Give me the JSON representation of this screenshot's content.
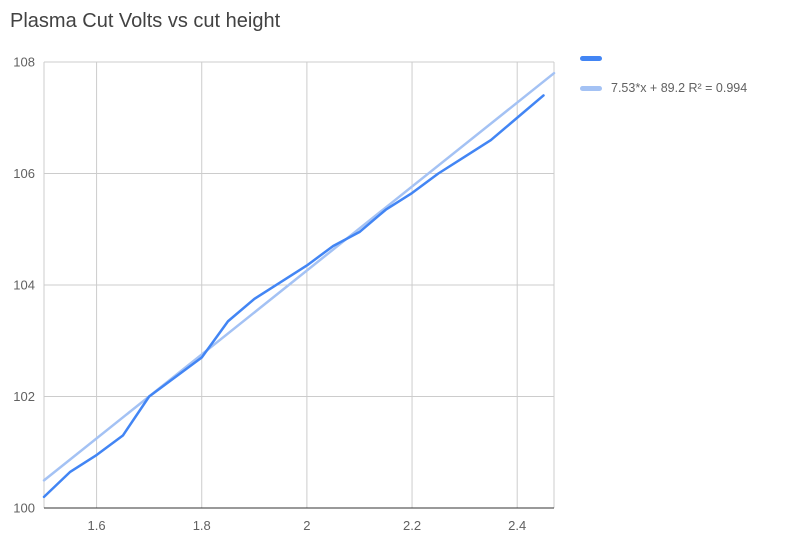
{
  "chart_data": {
    "type": "line",
    "title": "Plasma Cut Volts vs cut height",
    "xlabel": "",
    "ylabel": "",
    "x": [
      1.5,
      1.55,
      1.6,
      1.65,
      1.7,
      1.75,
      1.8,
      1.85,
      1.9,
      1.95,
      2,
      2.05,
      2.1,
      2.15,
      2.2,
      2.25,
      2.3,
      2.35,
      2.4,
      2.45
    ],
    "series": [
      {
        "name": "",
        "values": [
          100.2,
          100.65,
          100.95,
          101.3,
          102.0,
          102.35,
          102.7,
          103.35,
          103.75,
          104.05,
          104.35,
          104.7,
          104.95,
          105.35,
          105.65,
          106.0,
          106.3,
          106.6,
          107.0,
          107.4
        ]
      }
    ],
    "trendline": {
      "slope": 7.53,
      "intercept": 89.2,
      "r2": 0.994,
      "label": "7.53*x + 89.2 R² = 0.994"
    },
    "xlim": [
      1.5,
      2.47
    ],
    "ylim": [
      100,
      108
    ],
    "x_ticks": [
      1.6,
      1.8,
      2,
      2.2,
      2.4
    ],
    "y_ticks": [
      100,
      102,
      104,
      106,
      108
    ],
    "grid": true,
    "legend_position": "top-right",
    "colors": {
      "series": "#4285f4",
      "trendline": "#a4c2f4",
      "grid": "#cccccc",
      "baseline": "#333333",
      "axis_text": "#616161",
      "title_text": "#424242"
    }
  }
}
